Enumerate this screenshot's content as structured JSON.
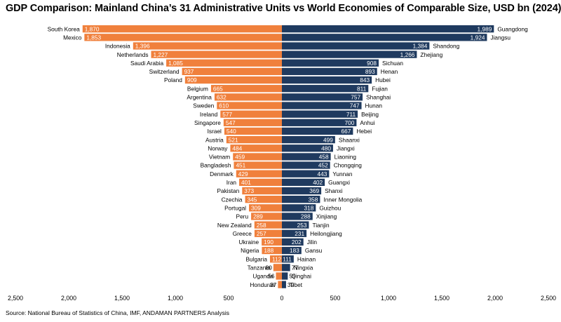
{
  "chart_data": {
    "type": "bar",
    "orientation": "horizontal-diverging",
    "title": "GDP Comparison: Mainland China’s 31 Administrative Units vs World Economies of Comparable Size, USD bn (2024)",
    "source": "Source: National Bureau of Statistics of China, IMF, ANDAMAN PARTNERS Analysis",
    "xlim": [
      -2500,
      2500
    ],
    "x_ticks": [
      -2500,
      -2000,
      -1500,
      -1000,
      -500,
      0,
      500,
      1000,
      1500,
      2000,
      2500
    ],
    "x_tick_labels": [
      "2,500",
      "2,000",
      "1,500",
      "1,000",
      "500",
      "0",
      "500",
      "1,000",
      "1,500",
      "2,000",
      "2,500"
    ],
    "grid": false,
    "colors": {
      "countries": "#F0803C",
      "provinces": "#1F3A5F",
      "left_label_text": "#ffffff",
      "right_label_text": "#ffffff"
    },
    "countries": {
      "categories": [
        "South Korea",
        "Mexico",
        "Indonesia",
        "Netherlands",
        "Saudi Arabia",
        "Switzerland",
        "Poland",
        "Belgium",
        "Argentina",
        "Sweden",
        "Ireland",
        "Singapore",
        "Israel",
        "Austria",
        "Norway",
        "Vietnam",
        "Bangladesh",
        "Denmark",
        "Iran",
        "Pakistan",
        "Czechia",
        "Portugal",
        "Peru",
        "New Zealand",
        "Greece",
        "Ukraine",
        "Nigeria",
        "Bulgaria",
        "Tanzania",
        "Uganda",
        "Honduras"
      ],
      "values": [
        1870,
        1853,
        1396,
        1227,
        1085,
        937,
        909,
        665,
        632,
        610,
        577,
        547,
        540,
        521,
        484,
        459,
        451,
        429,
        401,
        373,
        345,
        309,
        289,
        258,
        257,
        190,
        188,
        112,
        80,
        56,
        37
      ],
      "labels": [
        "1,870",
        "1,853",
        "1,396",
        "1,227",
        "1,085",
        "937",
        "909",
        "665",
        "632",
        "610",
        "577",
        "547",
        "540",
        "521",
        "484",
        "459",
        "451",
        "429",
        "401",
        "373",
        "345",
        "309",
        "289",
        "258",
        "257",
        "190",
        "188",
        "112",
        "80",
        "56",
        "37"
      ]
    },
    "provinces": {
      "categories": [
        "Guangdong",
        "Jiangsu",
        "Shandong",
        "Zhejiang",
        "Sichuan",
        "Henan",
        "Hubei",
        "Fujian",
        "Shanghai",
        "Hunan",
        "Beijing",
        "Anhui",
        "Hebei",
        "Shaanxi",
        "Jiangxi",
        "Liaoning",
        "Chongqing",
        "Yunnan",
        "Guangxi",
        "Shanxi",
        "Inner Mongolia",
        "Guizhou",
        "Xinjiang",
        "Tianjin",
        "Heilongjiang",
        "Jilin",
        "Gansu",
        "Hainan",
        "Ningxia",
        "Qinghai",
        "Tibet"
      ],
      "values": [
        1989,
        1924,
        1384,
        1266,
        908,
        893,
        843,
        811,
        757,
        747,
        711,
        700,
        667,
        499,
        480,
        458,
        452,
        443,
        402,
        369,
        358,
        318,
        288,
        253,
        231,
        202,
        183,
        111,
        77,
        55,
        39
      ],
      "labels": [
        "1,989",
        "1,924",
        "1,384",
        "1,266",
        "908",
        "893",
        "843",
        "811",
        "757",
        "747",
        "711",
        "700",
        "667",
        "499",
        "480",
        "458",
        "452",
        "443",
        "402",
        "369",
        "358",
        "318",
        "288",
        "253",
        "231",
        "202",
        "183",
        "111",
        "77",
        "55",
        "39"
      ]
    }
  }
}
